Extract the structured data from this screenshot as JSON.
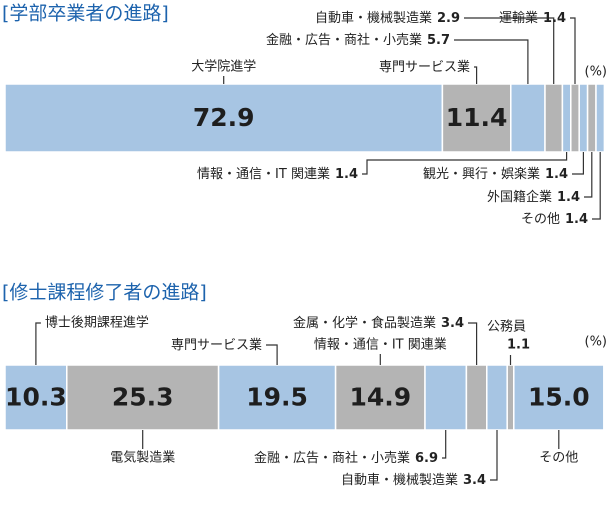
{
  "chart_data": [
    {
      "type": "stacked-bar",
      "title": "[学部卒業者の進路]",
      "unit": "(%)",
      "categories": [
        "大学院進学",
        "専門サービス業",
        "金融・広告・商社・小売業",
        "自動車・機械製造業",
        "情報・通信・IT 関連業",
        "運輸業",
        "観光・興行・娯楽業",
        "外国籍企業",
        "その他"
      ],
      "values": [
        72.9,
        11.4,
        5.7,
        2.9,
        1.4,
        1.4,
        1.4,
        1.4,
        1.4
      ],
      "colors": [
        "#a7c5e3",
        "#b4b4b4",
        "#a7c5e3",
        "#b4b4b4",
        "#a7c5e3",
        "#b4b4b4",
        "#a7c5e3",
        "#b4b4b4",
        "#a7c5e3"
      ],
      "xlim": [
        0,
        100
      ]
    },
    {
      "type": "stacked-bar",
      "title": "[修士課程修了者の進路]",
      "unit": "(%)",
      "categories": [
        "博士後期課程進学",
        "電気製造業",
        "専門サービス業",
        "情報・通信・IT 関連業",
        "金融・広告・商社・小売業",
        "金属・化学・食品製造業",
        "自動車・機械製造業",
        "公務員",
        "その他"
      ],
      "values": [
        10.3,
        25.3,
        19.5,
        14.9,
        6.9,
        3.4,
        3.4,
        1.1,
        15.0
      ],
      "value_labels": [
        "10.3",
        "25.3",
        "19.5",
        "14.9",
        "6.9",
        "3.4",
        "3.4",
        "1.1",
        "15.0"
      ],
      "colors": [
        "#a7c5e3",
        "#b4b4b4",
        "#a7c5e3",
        "#b4b4b4",
        "#a7c5e3",
        "#b4b4b4",
        "#a7c5e3",
        "#b4b4b4",
        "#a7c5e3"
      ],
      "xlim": [
        0,
        100
      ]
    }
  ]
}
